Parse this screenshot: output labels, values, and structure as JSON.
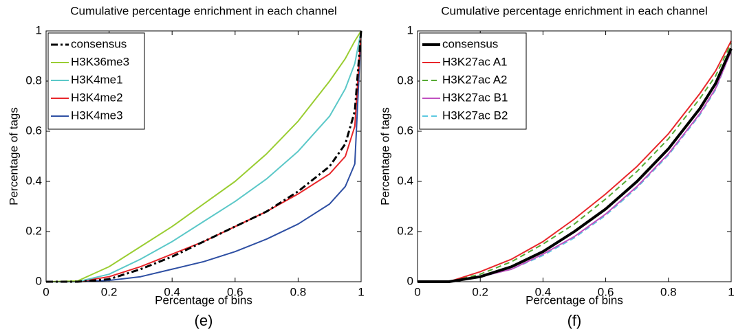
{
  "chart_data": [
    {
      "type": "line",
      "title": "Cumulative percentage enrichment in each channel",
      "xlabel": "Percentage of bins",
      "ylabel": "Percentage of tags",
      "caption": "(e)",
      "x": [
        0,
        0.1,
        0.2,
        0.3,
        0.4,
        0.5,
        0.6,
        0.7,
        0.8,
        0.9,
        0.95,
        0.98,
        1
      ],
      "series": [
        {
          "name": "consensus",
          "color": "#000000",
          "dash": "dashdot",
          "width": 3,
          "values": [
            0,
            0,
            0.01,
            0.05,
            0.1,
            0.16,
            0.22,
            0.28,
            0.36,
            0.46,
            0.55,
            0.68,
            1
          ]
        },
        {
          "name": "H3K36me3",
          "color": "#9acd32",
          "dash": "solid",
          "width": 2,
          "values": [
            0,
            0.003,
            0.06,
            0.14,
            0.22,
            0.31,
            0.4,
            0.51,
            0.64,
            0.8,
            0.89,
            0.96,
            1
          ]
        },
        {
          "name": "H3K4me1",
          "color": "#5bc8c8",
          "dash": "solid",
          "width": 2,
          "values": [
            0,
            0,
            0.03,
            0.09,
            0.16,
            0.24,
            0.32,
            0.41,
            0.52,
            0.66,
            0.77,
            0.87,
            1
          ]
        },
        {
          "name": "H3K4me2",
          "color": "#e8262a",
          "dash": "solid",
          "width": 2,
          "values": [
            0,
            0,
            0.02,
            0.06,
            0.11,
            0.16,
            0.22,
            0.28,
            0.35,
            0.43,
            0.5,
            0.62,
            1
          ]
        },
        {
          "name": "H3K4me3",
          "color": "#2e4fa3",
          "dash": "solid",
          "width": 2,
          "values": [
            0,
            0,
            0.005,
            0.02,
            0.05,
            0.08,
            0.12,
            0.17,
            0.23,
            0.31,
            0.38,
            0.47,
            1
          ]
        }
      ],
      "xlim": [
        0,
        1
      ],
      "ylim": [
        0,
        1
      ],
      "xticks": [
        0,
        0.2,
        0.4,
        0.6,
        0.8,
        1
      ],
      "yticks": [
        0,
        0.2,
        0.4,
        0.6,
        0.8,
        1
      ],
      "legend": "upper-left",
      "grid": false
    },
    {
      "type": "line",
      "title": "Cumulative percentage enrichment in each channel",
      "xlabel": "Percentage of bins",
      "ylabel": "Percentage of tags",
      "caption": "(f)",
      "x": [
        0,
        0.1,
        0.2,
        0.3,
        0.4,
        0.5,
        0.6,
        0.7,
        0.8,
        0.9,
        0.95,
        1
      ],
      "series": [
        {
          "name": "consensus",
          "color": "#000000",
          "dash": "solid",
          "width": 4,
          "values": [
            0,
            0,
            0.02,
            0.06,
            0.12,
            0.2,
            0.29,
            0.4,
            0.53,
            0.69,
            0.79,
            0.93
          ]
        },
        {
          "name": "H3K27ac A1",
          "color": "#e8262a",
          "dash": "solid",
          "width": 2,
          "values": [
            0,
            0,
            0.04,
            0.09,
            0.16,
            0.25,
            0.35,
            0.46,
            0.59,
            0.75,
            0.84,
            0.96
          ]
        },
        {
          "name": "H3K27ac A2",
          "color": "#55aa33",
          "dash": "dashed",
          "width": 2,
          "values": [
            0,
            0,
            0.03,
            0.08,
            0.15,
            0.23,
            0.33,
            0.44,
            0.57,
            0.73,
            0.82,
            0.95
          ]
        },
        {
          "name": "H3K27ac B1",
          "color": "#c050c0",
          "dash": "solid",
          "width": 2,
          "values": [
            0,
            0,
            0.02,
            0.05,
            0.11,
            0.18,
            0.27,
            0.38,
            0.51,
            0.67,
            0.77,
            0.92
          ]
        },
        {
          "name": "H3K27ac B2",
          "color": "#5bc8e0",
          "dash": "dashed",
          "width": 2,
          "values": [
            0,
            0,
            0.02,
            0.05,
            0.105,
            0.175,
            0.265,
            0.375,
            0.505,
            0.665,
            0.765,
            0.92
          ]
        }
      ],
      "xlim": [
        0,
        1
      ],
      "ylim": [
        0,
        1
      ],
      "xticks": [
        0,
        0.2,
        0.4,
        0.6,
        0.8,
        1
      ],
      "yticks": [
        0,
        0.2,
        0.4,
        0.6,
        0.8,
        1
      ],
      "legend": "upper-left",
      "grid": false
    }
  ]
}
